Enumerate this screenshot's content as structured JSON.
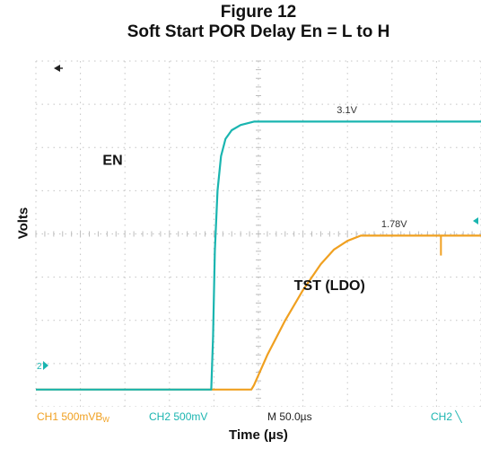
{
  "chart_data": {
    "type": "line",
    "title": "Figure 12",
    "subtitle": "Soft Start POR Delay  En = L to H",
    "xlabel": "Time (µs)",
    "ylabel": "Volts",
    "grid": true,
    "x_divisions": 10,
    "y_divisions": 8,
    "time_per_div_us": 50,
    "volts_per_div": 0.5,
    "xlim_us": [
      0,
      500
    ],
    "ylim_v": [
      -0.2,
      3.8
    ],
    "series": [
      {
        "name": "EN",
        "color": "#1ab5b0",
        "x_us": [
          0,
          197,
          199,
          201,
          204,
          208,
          213,
          220,
          230,
          245,
          500
        ],
        "y_v": [
          0,
          0,
          0.6,
          1.6,
          2.3,
          2.7,
          2.9,
          3.0,
          3.06,
          3.1,
          3.1
        ]
      },
      {
        "name": "TST (LDO)",
        "color": "#f0a020",
        "x_us": [
          0,
          242,
          245,
          260,
          280,
          300,
          320,
          335,
          350,
          365,
          500
        ],
        "y_v": [
          0,
          0,
          0.05,
          0.4,
          0.8,
          1.15,
          1.45,
          1.62,
          1.72,
          1.78,
          1.78
        ],
        "glitch": {
          "x_us": 455,
          "y_v": 1.55
        }
      }
    ],
    "annotations": [
      {
        "text": "EN",
        "x_us": 75,
        "y_v": 2.6
      },
      {
        "text": "TST (LDO)",
        "x_us": 290,
        "y_v": 1.15
      },
      {
        "text": "3.1V",
        "x_us": 338,
        "y_v": 3.2
      },
      {
        "text": "1.78V",
        "x_us": 388,
        "y_v": 1.88
      }
    ],
    "ground_marker": "2",
    "status_bar": {
      "ch1": "CH1  500mVB",
      "ch1_sub": "W",
      "ch2": "CH2  500mV",
      "timebase": "M 50.0µs",
      "trigger": "CH2  ╲"
    }
  }
}
